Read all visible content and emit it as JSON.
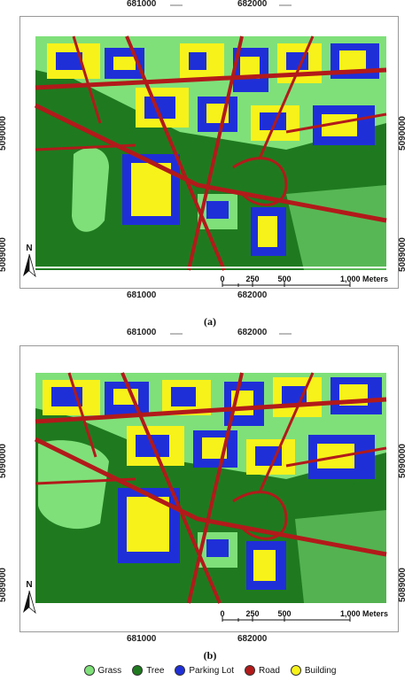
{
  "figure": {
    "panels": [
      {
        "caption": "(a)",
        "x_ticks": [
          "681000",
          "682000"
        ],
        "y_ticks": [
          "5090000",
          "5089000"
        ],
        "scale_bar": {
          "labels": [
            "0",
            "250",
            "500",
            "1,000 Meters"
          ]
        },
        "north_label": "N"
      },
      {
        "caption": "(b)",
        "x_ticks": [
          "681000",
          "682000"
        ],
        "y_ticks": [
          "5090000",
          "5089000"
        ],
        "scale_bar": {
          "labels": [
            "0",
            "250",
            "500",
            "1,000 Meters"
          ]
        },
        "north_label": "N"
      }
    ],
    "legend": [
      {
        "label": "Grass",
        "color": "#7fe07a"
      },
      {
        "label": "Tree",
        "color": "#1f7a1f"
      },
      {
        "label": "Parking Lot",
        "color": "#1f2fd8"
      },
      {
        "label": "Road",
        "color": "#b21a1a"
      },
      {
        "label": "Building",
        "color": "#f7f21a"
      }
    ]
  }
}
